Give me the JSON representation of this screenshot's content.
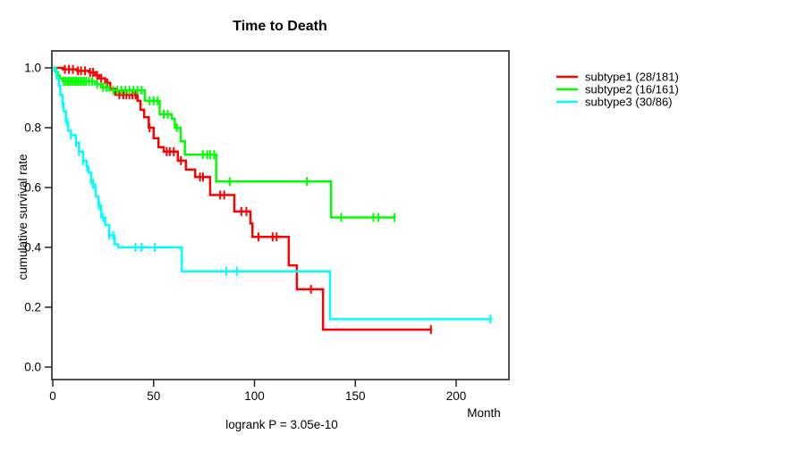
{
  "title": "Time to Death",
  "annotation": "logrank P = 3.05e-10",
  "axes": {
    "y_label": "cumulative survival rate",
    "x_label": "Month",
    "y_ticks": [
      {
        "v": 0.0,
        "label": "0.0"
      },
      {
        "v": 0.2,
        "label": "0.2"
      },
      {
        "v": 0.4,
        "label": "0.4"
      },
      {
        "v": 0.6,
        "label": "0.6"
      },
      {
        "v": 0.8,
        "label": "0.8"
      },
      {
        "v": 1.0,
        "label": "1.0"
      }
    ],
    "x_ticks": [
      {
        "v": 0,
        "label": "0"
      },
      {
        "v": 50,
        "label": "50"
      },
      {
        "v": 100,
        "label": "100"
      },
      {
        "v": 150,
        "label": "150"
      },
      {
        "v": 200,
        "label": "200"
      }
    ]
  },
  "chart_data": {
    "type": "line",
    "subtype": "kaplan-meier-step",
    "title": "Time to Death",
    "xlabel": "Month",
    "ylabel": "cumulative survival rate",
    "xlim": [
      0,
      225
    ],
    "ylim": [
      0.0,
      1.04
    ],
    "grid": false,
    "legend_position": "right-outside",
    "annotation": "logrank P = 3.05e-10",
    "series": [
      {
        "name": "subtype1 (28/181)",
        "color": "#ff0000",
        "events_over_n": "28/181",
        "end_month": 188,
        "points": [
          [
            0,
            1.0
          ],
          [
            5,
            0.995
          ],
          [
            12,
            0.99
          ],
          [
            18,
            0.985
          ],
          [
            21,
            0.975
          ],
          [
            23,
            0.965
          ],
          [
            26,
            0.95
          ],
          [
            28.5,
            0.93
          ],
          [
            31,
            0.91
          ],
          [
            42,
            0.89
          ],
          [
            43.5,
            0.86
          ],
          [
            45.3,
            0.835
          ],
          [
            47.6,
            0.8
          ],
          [
            50,
            0.765
          ],
          [
            52.4,
            0.735
          ],
          [
            55,
            0.72
          ],
          [
            62,
            0.69
          ],
          [
            66,
            0.66
          ],
          [
            70.6,
            0.635
          ],
          [
            78,
            0.575
          ],
          [
            90,
            0.52
          ],
          [
            98,
            0.48
          ],
          [
            99,
            0.435
          ],
          [
            117,
            0.34
          ],
          [
            121,
            0.26
          ],
          [
            134,
            0.125
          ]
        ],
        "censor_ticks": [
          6,
          8,
          10,
          12.5,
          14,
          16,
          18.5,
          20,
          22,
          24,
          27,
          33,
          35,
          36.5,
          38,
          39.5,
          41,
          48,
          56.5,
          58,
          60,
          63.5,
          73,
          74.5,
          83,
          85,
          93.5,
          96,
          102,
          109,
          111,
          128,
          187.5
        ]
      },
      {
        "name": "subtype2 (16/161)",
        "color": "#00ff00",
        "events_over_n": "16/161",
        "end_month": 170,
        "points": [
          [
            0,
            1.0
          ],
          [
            1.5,
            0.985
          ],
          [
            2.5,
            0.975
          ],
          [
            3.5,
            0.965
          ],
          [
            5,
            0.955
          ],
          [
            21,
            0.945
          ],
          [
            24,
            0.935
          ],
          [
            28,
            0.925
          ],
          [
            45.6,
            0.89
          ],
          [
            53,
            0.845
          ],
          [
            59,
            0.83
          ],
          [
            60.5,
            0.8
          ],
          [
            63.4,
            0.755
          ],
          [
            65.5,
            0.71
          ],
          [
            81,
            0.62
          ],
          [
            138,
            0.5
          ]
        ],
        "censor_ticks": [
          5.5,
          6.5,
          7.5,
          8.5,
          9.5,
          10.5,
          11.5,
          12.5,
          13.5,
          14.5,
          15.5,
          16.5,
          18,
          19.5,
          22,
          25,
          26.5,
          30,
          32,
          34,
          36,
          38,
          40,
          42,
          44,
          48,
          50,
          52,
          55,
          57,
          61.5,
          74.4,
          76.6,
          78,
          80,
          87.7,
          126,
          143,
          159,
          161.5,
          169.5
        ]
      },
      {
        "name": "subtype3 (30/86)",
        "color": "#00ffff",
        "events_over_n": "30/86",
        "end_month": 218,
        "points": [
          [
            0,
            1.0
          ],
          [
            1,
            0.99
          ],
          [
            2,
            0.965
          ],
          [
            3,
            0.94
          ],
          [
            3.7,
            0.91
          ],
          [
            4.8,
            0.88
          ],
          [
            5.4,
            0.855
          ],
          [
            6.5,
            0.82
          ],
          [
            7.6,
            0.79
          ],
          [
            9,
            0.775
          ],
          [
            11.5,
            0.75
          ],
          [
            13,
            0.72
          ],
          [
            15,
            0.69
          ],
          [
            16.8,
            0.67
          ],
          [
            17.7,
            0.65
          ],
          [
            19,
            0.625
          ],
          [
            20,
            0.6
          ],
          [
            21.3,
            0.57
          ],
          [
            22.6,
            0.54
          ],
          [
            24,
            0.5
          ],
          [
            26,
            0.475
          ],
          [
            28,
            0.44
          ],
          [
            30.6,
            0.41
          ],
          [
            32.4,
            0.4
          ],
          [
            64,
            0.32
          ],
          [
            137.5,
            0.16
          ]
        ],
        "censor_ticks": [
          5,
          7,
          9,
          11.5,
          13,
          15,
          17,
          19,
          21,
          23,
          25,
          28,
          30,
          41,
          44,
          50.6,
          86,
          91.3,
          217
        ]
      }
    ]
  }
}
